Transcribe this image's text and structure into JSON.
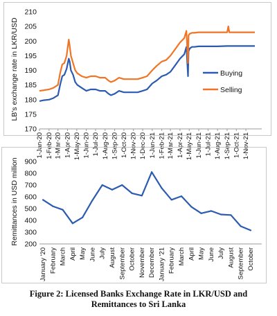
{
  "chart_data": [
    {
      "type": "line",
      "title": "",
      "ylabel": "LB's exchange rate in LKR/USD",
      "xlabel": "",
      "ylim": [
        170,
        210
      ],
      "yticks": [
        170,
        175,
        180,
        185,
        190,
        195,
        200,
        205,
        210
      ],
      "x_ticks": [
        "1-Jan-20",
        "1-Feb-20",
        "1-Mar-20",
        "1-Apr-20",
        "1-May-20",
        "1-Jun-20",
        "1-Jul-20",
        "1-Aug-20",
        "1-Sep-20",
        "1-Oct-20",
        "1-Nov-20",
        "1-Dec-20",
        "1-Jan-21",
        "1-Feb-21",
        "1-Mar-21",
        "1-Apr-21",
        "1-May-21",
        "1-Jun-21",
        "1-Jul-21",
        "1-Aug-21",
        "1-Sep-21",
        "1-Oct-21",
        "1-Nov-21"
      ],
      "grid": false,
      "legend_position": "right",
      "series": [
        {
          "name": "Buying",
          "color": "#2b5bb0",
          "x": [
            "2020-01-01",
            "2020-01-15",
            "2020-02-01",
            "2020-02-15",
            "2020-03-01",
            "2020-03-08",
            "2020-03-15",
            "2020-03-22",
            "2020-03-29",
            "2020-04-05",
            "2020-04-08",
            "2020-04-12",
            "2020-04-19",
            "2020-04-26",
            "2020-05-03",
            "2020-05-17",
            "2020-06-01",
            "2020-06-15",
            "2020-07-01",
            "2020-07-15",
            "2020-08-01",
            "2020-08-12",
            "2020-08-20",
            "2020-09-01",
            "2020-09-15",
            "2020-10-01",
            "2020-10-15",
            "2020-11-01",
            "2020-11-15",
            "2020-12-01",
            "2020-12-15",
            "2021-01-01",
            "2021-01-15",
            "2021-02-01",
            "2021-02-15",
            "2021-03-01",
            "2021-03-15",
            "2021-04-01",
            "2021-04-15",
            "2021-04-22",
            "2021-04-27",
            "2021-04-29",
            "2021-05-03",
            "2021-05-10",
            "2021-05-17",
            "2021-06-01",
            "2021-07-01",
            "2021-08-01",
            "2021-09-01",
            "2021-10-01",
            "2021-11-01",
            "2021-11-30"
          ],
          "values": [
            179.5,
            179.8,
            180.0,
            180.5,
            181.5,
            185.0,
            188.0,
            188.5,
            190.5,
            194.0,
            193.0,
            190.0,
            188.5,
            186.0,
            185.0,
            184.0,
            183.0,
            183.5,
            183.5,
            183.0,
            183.0,
            182.0,
            181.5,
            182.0,
            183.0,
            182.5,
            182.5,
            182.5,
            182.5,
            183.0,
            183.5,
            185.5,
            186.5,
            188.0,
            188.5,
            189.5,
            191.5,
            194.0,
            195.5,
            198.0,
            188.0,
            196.5,
            197.5,
            198.0,
            198.0,
            198.2,
            198.2,
            198.2,
            198.3,
            198.3,
            198.3,
            198.3
          ]
        },
        {
          "name": "Selling",
          "color": "#f07424",
          "x": [
            "2020-01-01",
            "2020-01-15",
            "2020-02-01",
            "2020-02-15",
            "2020-03-01",
            "2020-03-08",
            "2020-03-15",
            "2020-03-22",
            "2020-03-29",
            "2020-04-05",
            "2020-04-08",
            "2020-04-12",
            "2020-04-19",
            "2020-04-26",
            "2020-05-03",
            "2020-05-17",
            "2020-06-01",
            "2020-06-15",
            "2020-07-01",
            "2020-07-15",
            "2020-08-01",
            "2020-08-12",
            "2020-08-20",
            "2020-09-01",
            "2020-09-15",
            "2020-10-01",
            "2020-10-15",
            "2020-11-01",
            "2020-11-15",
            "2020-12-01",
            "2020-12-15",
            "2021-01-01",
            "2021-01-15",
            "2021-02-01",
            "2021-02-15",
            "2021-03-01",
            "2021-03-15",
            "2021-04-01",
            "2021-04-15",
            "2021-04-22",
            "2021-04-27",
            "2021-04-29",
            "2021-05-03",
            "2021-05-10",
            "2021-05-17",
            "2021-06-01",
            "2021-07-01",
            "2021-08-01",
            "2021-09-01",
            "2021-09-05",
            "2021-09-08",
            "2021-10-01",
            "2021-11-01",
            "2021-11-30"
          ],
          "values": [
            183.0,
            183.2,
            183.5,
            184.0,
            185.0,
            189.0,
            192.0,
            192.5,
            195.0,
            200.5,
            198.5,
            195.0,
            192.5,
            190.0,
            189.0,
            188.0,
            187.5,
            188.0,
            188.0,
            187.5,
            187.5,
            186.5,
            186.0,
            186.5,
            187.5,
            187.0,
            187.0,
            187.0,
            187.0,
            187.5,
            188.0,
            190.0,
            191.5,
            193.0,
            193.5,
            195.0,
            197.0,
            199.5,
            201.0,
            203.5,
            192.5,
            202.0,
            202.5,
            202.8,
            202.8,
            203.0,
            203.0,
            203.0,
            203.0,
            205.0,
            203.0,
            203.0,
            203.0,
            203.0
          ]
        }
      ]
    },
    {
      "type": "line",
      "title": "",
      "ylabel": "Remittances in USD million",
      "xlabel": "",
      "ylim": [
        200,
        900
      ],
      "yticks": [
        200,
        300,
        400,
        500,
        600,
        700,
        800,
        900
      ],
      "grid": false,
      "categories": [
        "January '20",
        "February",
        "March",
        "April",
        "May",
        "June",
        "July",
        "August",
        "September",
        "October",
        "November",
        "December",
        "January '21",
        "February",
        "March",
        "April",
        "May",
        "June",
        "July",
        "August",
        "September",
        "October"
      ],
      "series": [
        {
          "name": "",
          "color": "#2b5bb0",
          "values": [
            575,
            520,
            490,
            375,
            425,
            570,
            700,
            660,
            700,
            630,
            610,
            810,
            675,
            575,
            605,
            515,
            460,
            480,
            450,
            445,
            350,
            315
          ]
        }
      ]
    }
  ],
  "caption": {
    "line1": "Figure 2: Licensed Banks Exchange Rate in LKR/USD and",
    "line2": "Remittances to Sri Lanka"
  }
}
